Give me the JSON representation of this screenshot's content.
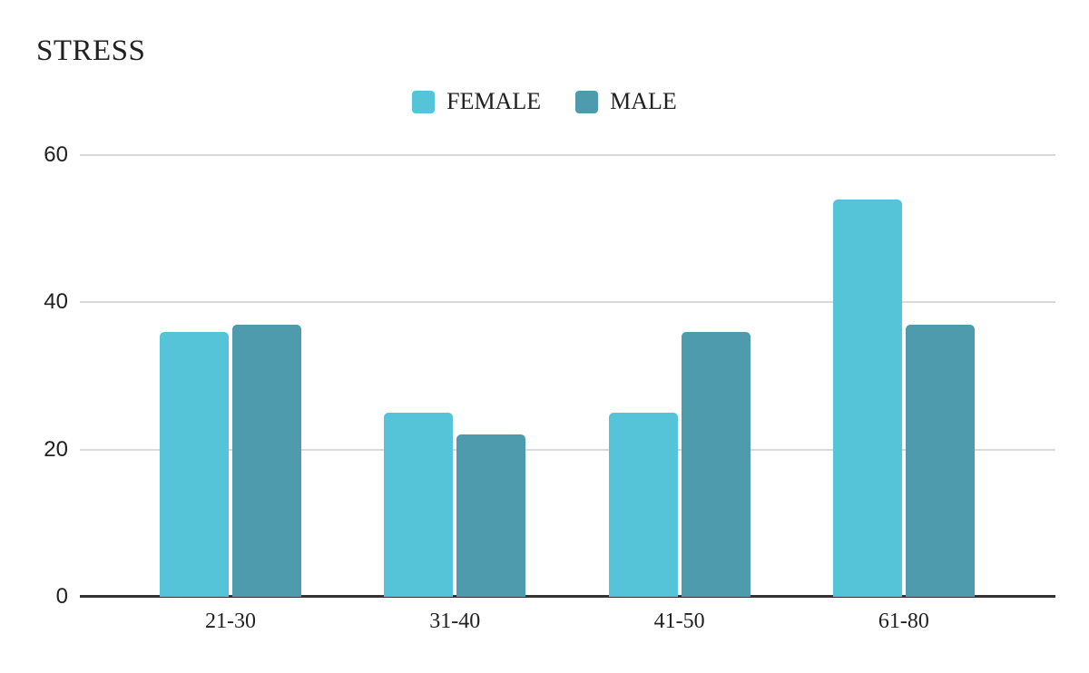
{
  "chart_data": {
    "type": "bar",
    "title": "STRESS",
    "categories": [
      "21-30",
      "31-40",
      "41-50",
      "61-80"
    ],
    "series": [
      {
        "name": "FEMALE",
        "color": "#56C4D8",
        "values": [
          36,
          25,
          25,
          54
        ]
      },
      {
        "name": "MALE",
        "color": "#4D9BAC",
        "values": [
          37,
          22,
          36,
          37
        ]
      }
    ],
    "ylim": [
      0,
      60
    ],
    "yticks": [
      0,
      20,
      40,
      60
    ],
    "grid": true,
    "legend_position": "top-center",
    "colors": {
      "gridline": "#d9d9d9",
      "baseline": "#333333",
      "title_text": "#212121",
      "axis_text": "#212121",
      "background": "#ffffff"
    }
  }
}
